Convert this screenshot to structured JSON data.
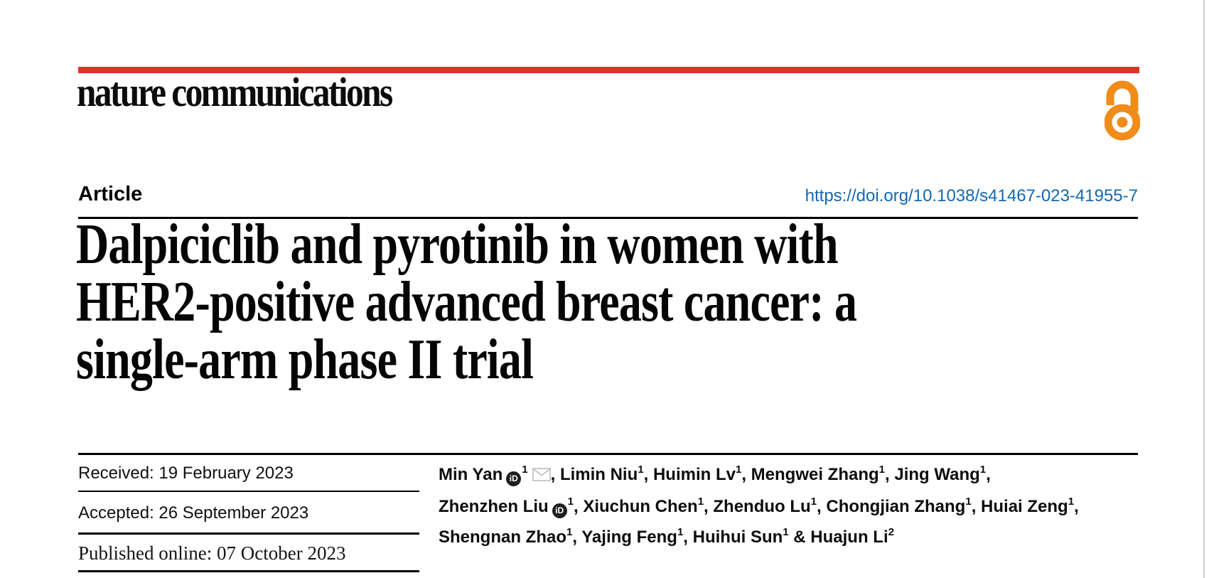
{
  "colors": {
    "accent_red": "#e23125",
    "doi_blue": "#1268b3",
    "open_access_orange": "#ef8c1a",
    "envelope_gray": "#bdbdbd",
    "orcid_black": "#1f1f1f",
    "page_edge_gray": "#cdcdcd"
  },
  "header": {
    "brand": "nature communications"
  },
  "article": {
    "label": "Article",
    "doi": "https://doi.org/10.1038/s41467-023-41955-7",
    "title_line1": "Dalpiciclib and pyrotinib in women with",
    "title_line2": "HER2-positive advanced breast cancer: a",
    "title_line3": "single-arm phase II trial"
  },
  "dates": {
    "received": "Received: 19 February 2023",
    "accepted": "Accepted: 26 September 2023",
    "published": "Published online: 07 October 2023"
  },
  "authors": {
    "orcid_label": "iD",
    "lines": [
      [
        {
          "name": "Min Yan",
          "orcid": true,
          "sup": "1",
          "envelope": true,
          "sep": ", "
        },
        {
          "name": "Limin Niu",
          "sup": "1",
          "sep": ", "
        },
        {
          "name": "Huimin Lv",
          "sup": "1",
          "sep": ", "
        },
        {
          "name": "Mengwei Zhang",
          "sup": "1",
          "sep": ", "
        },
        {
          "name": "Jing Wang",
          "sup": "1",
          "sep": ","
        }
      ],
      [
        {
          "name": "Zhenzhen Liu",
          "orcid": true,
          "sup": "1",
          "sep": ", "
        },
        {
          "name": "Xiuchun Chen",
          "sup": "1",
          "sep": ", "
        },
        {
          "name": "Zhenduo Lu",
          "sup": "1",
          "sep": ", "
        },
        {
          "name": "Chongjian Zhang",
          "sup": "1",
          "sep": ", "
        },
        {
          "name": "Huiai Zeng",
          "sup": "1",
          "sep": ","
        }
      ],
      [
        {
          "name": "Shengnan Zhao",
          "sup": "1",
          "sep": ", "
        },
        {
          "name": "Yajing Feng",
          "sup": "1",
          "sep": ", "
        },
        {
          "name": "Huihui Sun",
          "sup": "1",
          "sep": " & "
        },
        {
          "name": "Huajun Li",
          "sup": "2",
          "sep": ""
        }
      ]
    ]
  }
}
